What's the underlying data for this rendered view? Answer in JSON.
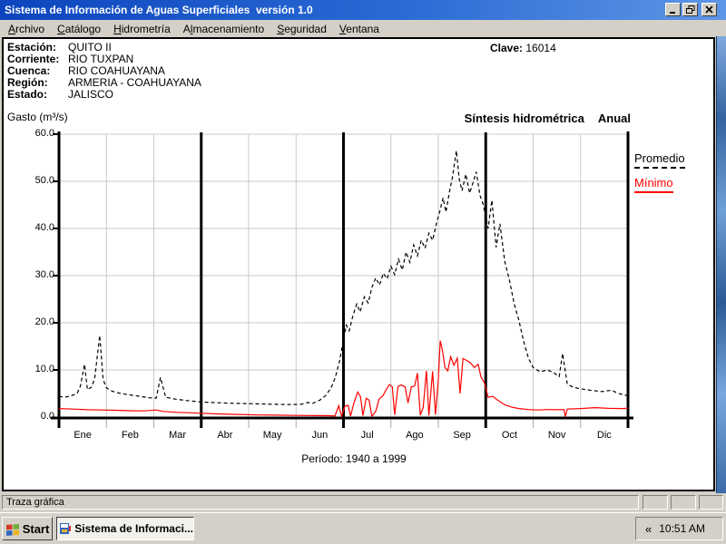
{
  "window": {
    "title": "Sistema de Información de Aguas Superficiales  versión 1.0"
  },
  "menu": {
    "items": [
      {
        "label": "Archivo",
        "accel": 0
      },
      {
        "label": "Catálogo",
        "accel": 0
      },
      {
        "label": "Hidrometría",
        "accel": 0
      },
      {
        "label": "Almacenamiento",
        "accel": 1
      },
      {
        "label": "Seguridad",
        "accel": 0
      },
      {
        "label": "Ventana",
        "accel": 0
      }
    ]
  },
  "station": {
    "rows": [
      {
        "label": "Estación:",
        "value": "QUITO II"
      },
      {
        "label": "Corriente:",
        "value": "RIO TUXPAN"
      },
      {
        "label": "Cuenca:",
        "value": "RIO COAHUAYANA"
      },
      {
        "label": "Región:",
        "value": "ARMERIA - COAHUAYANA"
      },
      {
        "label": "Estado:",
        "value": "JALISCO"
      }
    ],
    "clave_label": "Clave:",
    "clave_value": "16014"
  },
  "chart": {
    "ylabel": "Gasto (m³/s)",
    "subtitle": "Síntesis hidrométrica",
    "mode": "Anual",
    "period": "Período:  1940 a 1999"
  },
  "chart_data": {
    "type": "line",
    "title": "Síntesis hidrométrica Anual",
    "ylabel": "Gasto (m³/s)",
    "xlabel": "Período: 1940 a 1999",
    "categories": [
      "Ene",
      "Feb",
      "Mar",
      "Abr",
      "May",
      "Jun",
      "Jul",
      "Ago",
      "Sep",
      "Oct",
      "Nov",
      "Dic"
    ],
    "ylim": [
      0,
      60
    ],
    "yticks": [
      0,
      10,
      20,
      30,
      40,
      50,
      60
    ],
    "grid": true,
    "legend_position": "right",
    "quarter_separators": [
      3,
      6,
      9
    ],
    "series": [
      {
        "name": "Promedio",
        "color": "#000000",
        "line_style": "dashed",
        "points": [
          [
            0.0,
            4.4
          ],
          [
            0.12,
            4.2
          ],
          [
            0.25,
            4.5
          ],
          [
            0.38,
            5.0
          ],
          [
            0.45,
            6.5
          ],
          [
            0.54,
            11.2
          ],
          [
            0.6,
            5.8
          ],
          [
            0.68,
            6.3
          ],
          [
            0.75,
            8.0
          ],
          [
            0.86,
            17.3
          ],
          [
            0.93,
            8.0
          ],
          [
            1.0,
            6.2
          ],
          [
            1.12,
            5.5
          ],
          [
            1.3,
            5.0
          ],
          [
            1.5,
            4.7
          ],
          [
            1.7,
            4.4
          ],
          [
            1.9,
            4.1
          ],
          [
            2.05,
            4.0
          ],
          [
            2.14,
            8.4
          ],
          [
            2.25,
            4.2
          ],
          [
            2.45,
            3.8
          ],
          [
            2.7,
            3.5
          ],
          [
            3.0,
            3.2
          ],
          [
            3.3,
            3.05
          ],
          [
            3.6,
            2.95
          ],
          [
            4.0,
            2.85
          ],
          [
            4.4,
            2.75
          ],
          [
            4.8,
            2.65
          ],
          [
            5.1,
            2.7
          ],
          [
            5.25,
            3.1
          ],
          [
            5.35,
            2.9
          ],
          [
            5.5,
            3.6
          ],
          [
            5.62,
            4.5
          ],
          [
            5.74,
            6.2
          ],
          [
            5.83,
            8.5
          ],
          [
            5.92,
            12.0
          ],
          [
            6.0,
            16.5
          ],
          [
            6.06,
            19.5
          ],
          [
            6.12,
            18.3
          ],
          [
            6.2,
            21.5
          ],
          [
            6.28,
            24.0
          ],
          [
            6.35,
            22.3
          ],
          [
            6.44,
            25.5
          ],
          [
            6.52,
            24.2
          ],
          [
            6.6,
            27.5
          ],
          [
            6.68,
            29.5
          ],
          [
            6.76,
            28.0
          ],
          [
            6.84,
            30.5
          ],
          [
            6.92,
            29.3
          ],
          [
            7.0,
            32.0
          ],
          [
            7.08,
            30.2
          ],
          [
            7.16,
            33.5
          ],
          [
            7.24,
            31.2
          ],
          [
            7.32,
            35.0
          ],
          [
            7.4,
            32.8
          ],
          [
            7.48,
            36.5
          ],
          [
            7.56,
            34.2
          ],
          [
            7.64,
            37.5
          ],
          [
            7.72,
            35.8
          ],
          [
            7.8,
            39.0
          ],
          [
            7.88,
            37.5
          ],
          [
            7.96,
            41.0
          ],
          [
            8.04,
            44.0
          ],
          [
            8.1,
            46.5
          ],
          [
            8.16,
            43.5
          ],
          [
            8.24,
            48.0
          ],
          [
            8.3,
            51.0
          ],
          [
            8.38,
            56.5
          ],
          [
            8.44,
            50.5
          ],
          [
            8.5,
            48.0
          ],
          [
            8.58,
            51.5
          ],
          [
            8.66,
            47.5
          ],
          [
            8.74,
            50.0
          ],
          [
            8.8,
            52.0
          ],
          [
            8.88,
            47.0
          ],
          [
            8.95,
            45.0
          ],
          [
            9.05,
            40.0
          ],
          [
            9.13,
            46.0
          ],
          [
            9.22,
            36.0
          ],
          [
            9.3,
            41.0
          ],
          [
            9.4,
            33.0
          ],
          [
            9.5,
            29.0
          ],
          [
            9.6,
            24.0
          ],
          [
            9.7,
            20.5
          ],
          [
            9.8,
            16.0
          ],
          [
            9.9,
            12.5
          ],
          [
            10.0,
            10.5
          ],
          [
            10.15,
            9.6
          ],
          [
            10.3,
            10.0
          ],
          [
            10.43,
            9.4
          ],
          [
            10.55,
            8.6
          ],
          [
            10.62,
            13.5
          ],
          [
            10.72,
            7.0
          ],
          [
            10.85,
            6.3
          ],
          [
            11.0,
            6.0
          ],
          [
            11.2,
            5.7
          ],
          [
            11.45,
            5.4
          ],
          [
            11.65,
            5.7
          ],
          [
            11.8,
            5.0
          ],
          [
            12.0,
            4.5
          ]
        ]
      },
      {
        "name": "Mínimo",
        "color": "#ff0000",
        "line_style": "solid",
        "points": [
          [
            0.0,
            1.8
          ],
          [
            0.3,
            1.7
          ],
          [
            0.6,
            1.55
          ],
          [
            0.9,
            1.5
          ],
          [
            1.2,
            1.45
          ],
          [
            1.5,
            1.35
          ],
          [
            1.8,
            1.3
          ],
          [
            2.05,
            1.5
          ],
          [
            2.2,
            1.2
          ],
          [
            2.5,
            1.0
          ],
          [
            2.8,
            0.9
          ],
          [
            3.0,
            0.8
          ],
          [
            3.4,
            0.65
          ],
          [
            3.8,
            0.55
          ],
          [
            4.2,
            0.45
          ],
          [
            4.6,
            0.4
          ],
          [
            5.0,
            0.35
          ],
          [
            5.4,
            0.3
          ],
          [
            5.7,
            0.28
          ],
          [
            5.82,
            0.25
          ],
          [
            5.9,
            2.4
          ],
          [
            5.96,
            0.2
          ],
          [
            6.03,
            2.3
          ],
          [
            6.1,
            2.5
          ],
          [
            6.15,
            0.2
          ],
          [
            6.22,
            3.0
          ],
          [
            6.3,
            5.3
          ],
          [
            6.36,
            4.3
          ],
          [
            6.41,
            0.3
          ],
          [
            6.48,
            4.0
          ],
          [
            6.54,
            3.6
          ],
          [
            6.6,
            0.2
          ],
          [
            6.68,
            1.2
          ],
          [
            6.75,
            3.8
          ],
          [
            6.83,
            4.5
          ],
          [
            6.9,
            5.8
          ],
          [
            6.97,
            6.9
          ],
          [
            7.03,
            6.4
          ],
          [
            7.08,
            0.5
          ],
          [
            7.15,
            6.5
          ],
          [
            7.22,
            6.8
          ],
          [
            7.3,
            6.4
          ],
          [
            7.36,
            3.0
          ],
          [
            7.43,
            6.4
          ],
          [
            7.5,
            6.6
          ],
          [
            7.56,
            9.3
          ],
          [
            7.62,
            0.4
          ],
          [
            7.68,
            2.0
          ],
          [
            7.75,
            9.8
          ],
          [
            7.8,
            0.3
          ],
          [
            7.88,
            9.7
          ],
          [
            7.94,
            0.5
          ],
          [
            8.0,
            8.0
          ],
          [
            8.04,
            16.2
          ],
          [
            8.09,
            14.0
          ],
          [
            8.14,
            10.5
          ],
          [
            8.2,
            9.8
          ],
          [
            8.26,
            12.8
          ],
          [
            8.33,
            11.0
          ],
          [
            8.4,
            12.5
          ],
          [
            8.46,
            5.0
          ],
          [
            8.52,
            12.4
          ],
          [
            8.6,
            12.0
          ],
          [
            8.68,
            11.5
          ],
          [
            8.76,
            10.5
          ],
          [
            8.84,
            11.2
          ],
          [
            8.9,
            8.5
          ],
          [
            8.97,
            7.3
          ],
          [
            9.05,
            4.2
          ],
          [
            9.15,
            4.4
          ],
          [
            9.25,
            3.6
          ],
          [
            9.4,
            2.6
          ],
          [
            9.55,
            2.1
          ],
          [
            9.7,
            1.8
          ],
          [
            9.9,
            1.6
          ],
          [
            10.1,
            1.5
          ],
          [
            10.3,
            1.6
          ],
          [
            10.5,
            1.55
          ],
          [
            10.65,
            1.6
          ],
          [
            10.68,
            0.1
          ],
          [
            10.72,
            1.7
          ],
          [
            11.0,
            1.8
          ],
          [
            11.3,
            2.0
          ],
          [
            11.6,
            1.85
          ],
          [
            11.9,
            1.8
          ],
          [
            12.0,
            1.9
          ]
        ]
      }
    ]
  },
  "status_bar": {
    "message": "Traza gráfica"
  },
  "taskbar": {
    "start_label": "Start",
    "task_label": "Sistema de Informaci...",
    "tray_chevron": "«",
    "clock": "10:51 AM"
  }
}
